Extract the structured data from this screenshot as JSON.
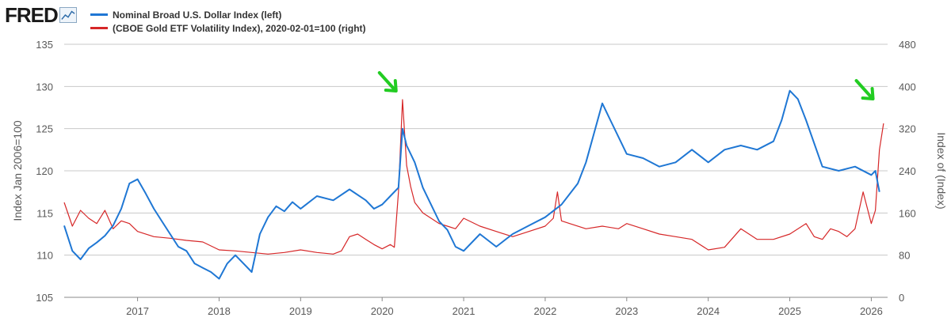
{
  "logo": {
    "text": "FRED",
    "icon": "line-chart-icon"
  },
  "chart_data": {
    "type": "line",
    "title": "",
    "legend_placement": "top-left",
    "grid": true,
    "x_ticks": [
      "2017",
      "2018",
      "2019",
      "2020",
      "2021",
      "2022",
      "2023",
      "2024",
      "2025",
      "2026"
    ],
    "x_range": [
      2016.1,
      2026.2
    ],
    "left_axis": {
      "label": "Index Jan 2006=100",
      "range": [
        105,
        135
      ],
      "ticks": [
        "135",
        "130",
        "125",
        "120",
        "115",
        "110",
        "105"
      ]
    },
    "right_axis": {
      "label": "Index of (Index)",
      "range": [
        0,
        480
      ],
      "ticks": [
        "480",
        "400",
        "320",
        "240",
        "160",
        "80",
        "0"
      ]
    },
    "series": [
      {
        "name": "Nominal Broad U.S. Dollar Index (left)",
        "color": "#1f77d4",
        "axis": "left",
        "x": [
          2016.1,
          2016.2,
          2016.3,
          2016.4,
          2016.5,
          2016.6,
          2016.7,
          2016.8,
          2016.9,
          2017.0,
          2017.1,
          2017.2,
          2017.3,
          2017.4,
          2017.5,
          2017.6,
          2017.7,
          2017.8,
          2017.9,
          2018.0,
          2018.1,
          2018.2,
          2018.3,
          2018.4,
          2018.5,
          2018.6,
          2018.7,
          2018.8,
          2018.9,
          2019.0,
          2019.2,
          2019.4,
          2019.6,
          2019.8,
          2019.9,
          2020.0,
          2020.1,
          2020.2,
          2020.25,
          2020.3,
          2020.4,
          2020.5,
          2020.6,
          2020.7,
          2020.8,
          2020.9,
          2021.0,
          2021.2,
          2021.4,
          2021.6,
          2021.8,
          2022.0,
          2022.2,
          2022.4,
          2022.5,
          2022.6,
          2022.7,
          2022.8,
          2022.9,
          2023.0,
          2023.2,
          2023.4,
          2023.6,
          2023.8,
          2024.0,
          2024.2,
          2024.4,
          2024.6,
          2024.8,
          2024.9,
          2025.0,
          2025.1,
          2025.2,
          2025.4,
          2025.6,
          2025.8,
          2026.0,
          2026.05,
          2026.1
        ],
        "y": [
          113.5,
          110.5,
          109.5,
          110.8,
          111.5,
          112.3,
          113.5,
          115.5,
          118.5,
          119.0,
          117.3,
          115.5,
          114.0,
          112.5,
          111.0,
          110.5,
          109.0,
          108.5,
          108.0,
          107.2,
          109.0,
          110.0,
          109.0,
          108.0,
          112.5,
          114.5,
          115.8,
          115.2,
          116.3,
          115.5,
          117.0,
          116.5,
          117.8,
          116.5,
          115.5,
          116.0,
          117.0,
          118.0,
          125.0,
          123.0,
          121.0,
          118.0,
          116.0,
          114.0,
          113.0,
          111.0,
          110.5,
          112.5,
          111.0,
          112.5,
          113.5,
          114.5,
          116.0,
          118.5,
          121.0,
          124.5,
          128.0,
          126.0,
          124.0,
          122.0,
          121.5,
          120.5,
          121.0,
          122.5,
          121.0,
          122.5,
          123.0,
          122.5,
          123.5,
          126.0,
          129.5,
          128.5,
          126.0,
          120.5,
          120.0,
          120.5,
          119.5,
          120.0,
          117.5
        ]
      },
      {
        "name": "(CBOE Gold ETF Volatility Index), 2020-02-01=100 (right)",
        "color": "#d62728",
        "axis": "right",
        "x": [
          2016.1,
          2016.2,
          2016.3,
          2016.4,
          2016.5,
          2016.6,
          2016.7,
          2016.8,
          2016.9,
          2017.0,
          2017.2,
          2017.4,
          2017.6,
          2017.8,
          2018.0,
          2018.2,
          2018.4,
          2018.6,
          2018.8,
          2019.0,
          2019.2,
          2019.4,
          2019.5,
          2019.6,
          2019.7,
          2019.8,
          2019.9,
          2020.0,
          2020.1,
          2020.15,
          2020.2,
          2020.25,
          2020.3,
          2020.35,
          2020.4,
          2020.5,
          2020.6,
          2020.7,
          2020.8,
          2020.9,
          2021.0,
          2021.2,
          2021.4,
          2021.6,
          2021.8,
          2022.0,
          2022.1,
          2022.15,
          2022.2,
          2022.3,
          2022.5,
          2022.7,
          2022.9,
          2023.0,
          2023.2,
          2023.4,
          2023.6,
          2023.8,
          2024.0,
          2024.2,
          2024.4,
          2024.6,
          2024.8,
          2025.0,
          2025.2,
          2025.3,
          2025.4,
          2025.5,
          2025.6,
          2025.7,
          2025.8,
          2025.9,
          2026.0,
          2026.05,
          2026.1,
          2026.15
        ],
        "y": [
          180,
          135,
          165,
          150,
          140,
          165,
          130,
          145,
          140,
          125,
          115,
          112,
          108,
          105,
          90,
          88,
          85,
          82,
          85,
          90,
          85,
          82,
          88,
          115,
          120,
          110,
          100,
          92,
          100,
          95,
          200,
          375,
          250,
          210,
          180,
          160,
          150,
          140,
          135,
          130,
          150,
          135,
          125,
          115,
          125,
          135,
          150,
          200,
          145,
          140,
          130,
          135,
          130,
          140,
          130,
          120,
          115,
          110,
          90,
          95,
          130,
          110,
          110,
          120,
          140,
          115,
          110,
          130,
          125,
          115,
          130,
          200,
          140,
          165,
          280,
          330
        ]
      }
    ],
    "annotations": [
      {
        "type": "arrow",
        "color": "#22cc22",
        "x": 2020.2
      },
      {
        "type": "arrow",
        "color": "#22cc22",
        "x": 2026.05
      }
    ]
  }
}
